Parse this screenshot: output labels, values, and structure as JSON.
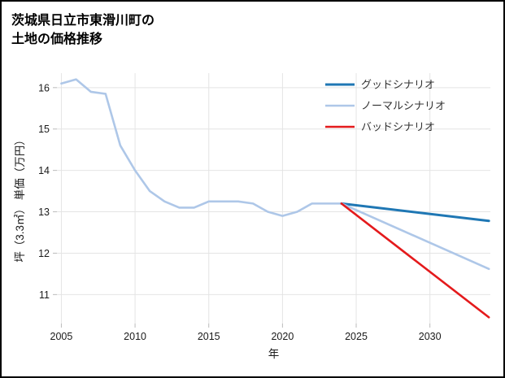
{
  "title": {
    "line1": "茨城県日立市東滑川町の",
    "line2": "土地の価格推移"
  },
  "chart_data": {
    "type": "line",
    "title": "茨城県日立市東滑川町の土地の価格推移",
    "xlabel": "年",
    "ylabel": "坪（3.3㎡） 単価（万円）",
    "xlim": [
      2004.7,
      2034.1
    ],
    "ylim": [
      10.3,
      16.35
    ],
    "xticks": [
      2005,
      2010,
      2015,
      2020,
      2025,
      2030
    ],
    "yticks": [
      11,
      12,
      13,
      14,
      15,
      16
    ],
    "grid": true,
    "legend_position": "upper right",
    "colors": {
      "grid": "#e4e4e4",
      "tick": "#bbbbbb",
      "tick_text": "#1a1a1a",
      "axis_text": "#1a1a1a",
      "legend_text": "#333333"
    },
    "series": [
      {
        "id": "price-history",
        "label": "",
        "legend": false,
        "color": "#aec7e8",
        "width": 2.6,
        "x": [
          2005,
          2006,
          2007,
          2008,
          2009,
          2010,
          2011,
          2012,
          2013,
          2014,
          2015,
          2016,
          2017,
          2018,
          2019,
          2020,
          2021,
          2022,
          2023,
          2024
        ],
        "y": [
          16.1,
          16.2,
          15.9,
          15.85,
          14.6,
          14.0,
          13.5,
          13.25,
          13.1,
          13.1,
          13.25,
          13.25,
          13.25,
          13.2,
          13.0,
          12.9,
          13.0,
          13.2,
          13.2,
          13.2
        ]
      },
      {
        "id": "good-scenario",
        "label": "グッドシナリオ",
        "legend": true,
        "color": "#1f77b4",
        "width": 3,
        "x": [
          2024,
          2034
        ],
        "y": [
          13.2,
          12.78
        ]
      },
      {
        "id": "normal-scenario",
        "label": "ノーマルシナリオ",
        "legend": true,
        "color": "#aec7e8",
        "width": 2.6,
        "x": [
          2024,
          2034
        ],
        "y": [
          13.2,
          11.62
        ]
      },
      {
        "id": "bad-scenario",
        "label": "バッドシナリオ",
        "legend": true,
        "color": "#e41a1c",
        "width": 2.6,
        "x": [
          2024,
          2034
        ],
        "y": [
          13.2,
          10.45
        ]
      }
    ]
  }
}
